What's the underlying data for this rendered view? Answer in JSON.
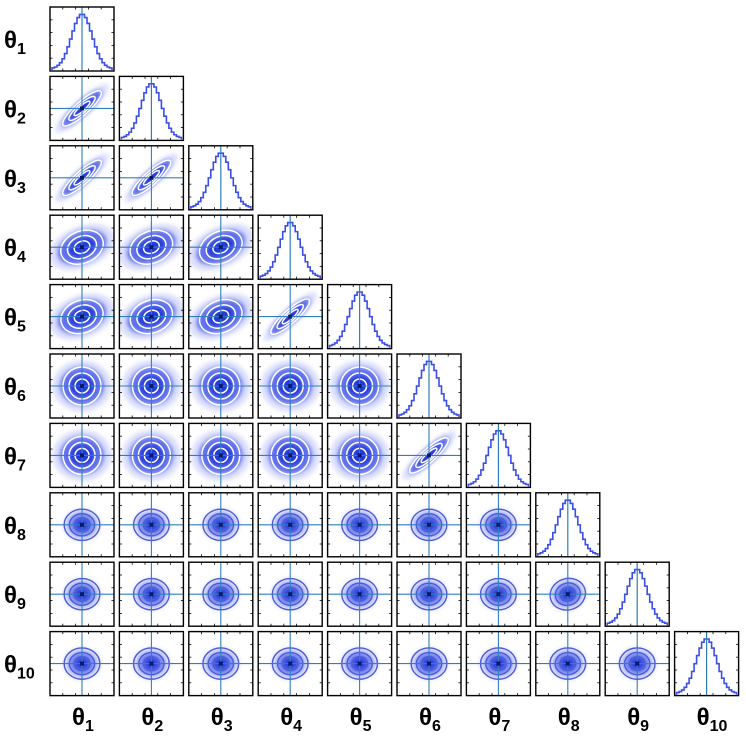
{
  "chart_data": {
    "type": "corner",
    "description_type": "pairwise posterior corner plot",
    "parameters": [
      {
        "symbol": "θ",
        "sub": "1"
      },
      {
        "symbol": "θ",
        "sub": "2"
      },
      {
        "symbol": "θ",
        "sub": "3"
      },
      {
        "symbol": "θ",
        "sub": "4"
      },
      {
        "symbol": "θ",
        "sub": "5"
      },
      {
        "symbol": "θ",
        "sub": "6"
      },
      {
        "symbol": "θ",
        "sub": "7"
      },
      {
        "symbol": "θ",
        "sub": "8"
      },
      {
        "symbol": "θ",
        "sub": "9"
      },
      {
        "symbol": "θ",
        "sub": "10"
      }
    ],
    "correlated_pairs": [
      {
        "row": 2,
        "col": 1,
        "rho": 0.9
      },
      {
        "row": 3,
        "col": 1,
        "rho": 0.9
      },
      {
        "row": 3,
        "col": 2,
        "rho": 0.9
      },
      {
        "row": 4,
        "col": 1,
        "rho": 0.45
      },
      {
        "row": 4,
        "col": 2,
        "rho": 0.45
      },
      {
        "row": 4,
        "col": 3,
        "rho": 0.5
      },
      {
        "row": 5,
        "col": 1,
        "rho": 0.4
      },
      {
        "row": 5,
        "col": 2,
        "rho": 0.4
      },
      {
        "row": 5,
        "col": 3,
        "rho": 0.45
      },
      {
        "row": 5,
        "col": 4,
        "rho": 0.9
      },
      {
        "row": 7,
        "col": 6,
        "rho": 0.9
      },
      {
        "row": 9,
        "col": 8,
        "rho": 0.35
      }
    ],
    "colors": {
      "density": "#3a4fe8",
      "truth_line": "#2f7fbf",
      "contour": "#ffffff",
      "frame": "#000000"
    },
    "grid": false
  }
}
